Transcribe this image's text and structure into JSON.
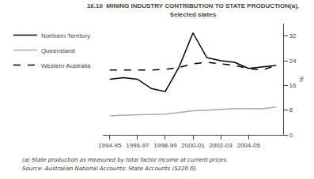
{
  "chart_data": {
    "type": "line",
    "title": "16.10  MINING INDUSTRY CONTRIBUTION TO STATE PRODUCTION(a),",
    "subtitle": "Selected states",
    "ylabel": "%",
    "categories": [
      "1994-95",
      null,
      "1996-97",
      null,
      "1998-99",
      null,
      "2000-01",
      null,
      "2002-03",
      null,
      "2004-05",
      null,
      null
    ],
    "series": [
      {
        "name": "Northern Territory",
        "color": "#000000",
        "line_style": "solid",
        "values": [
          18.0,
          18.5,
          18.0,
          15.0,
          14.0,
          22.0,
          33.0,
          25.0,
          24.0,
          23.5,
          21.5,
          22.0,
          22.5
        ]
      },
      {
        "name": "Queensland",
        "color": "#aaaaaa",
        "line_style": "solid",
        "values": [
          6.2,
          6.4,
          6.5,
          6.6,
          6.7,
          7.2,
          7.8,
          8.0,
          8.3,
          8.5,
          8.5,
          8.4,
          9.0
        ]
      },
      {
        "name": "Western Australia",
        "color": "#000000",
        "line_style": "dashed",
        "values": [
          21.0,
          21.0,
          21.0,
          21.0,
          21.2,
          21.8,
          23.0,
          23.5,
          23.0,
          22.5,
          21.5,
          21.0,
          22.5
        ]
      }
    ],
    "ylim": [
      0,
      36
    ],
    "yticks": [
      0,
      8,
      16,
      24,
      32
    ],
    "grid": false,
    "legend": "upper left",
    "annotations": [
      "(a) State production as measured by total factor income at current prices.",
      "Source: Australian National Accounts: State Accounts (5220.0)."
    ]
  }
}
